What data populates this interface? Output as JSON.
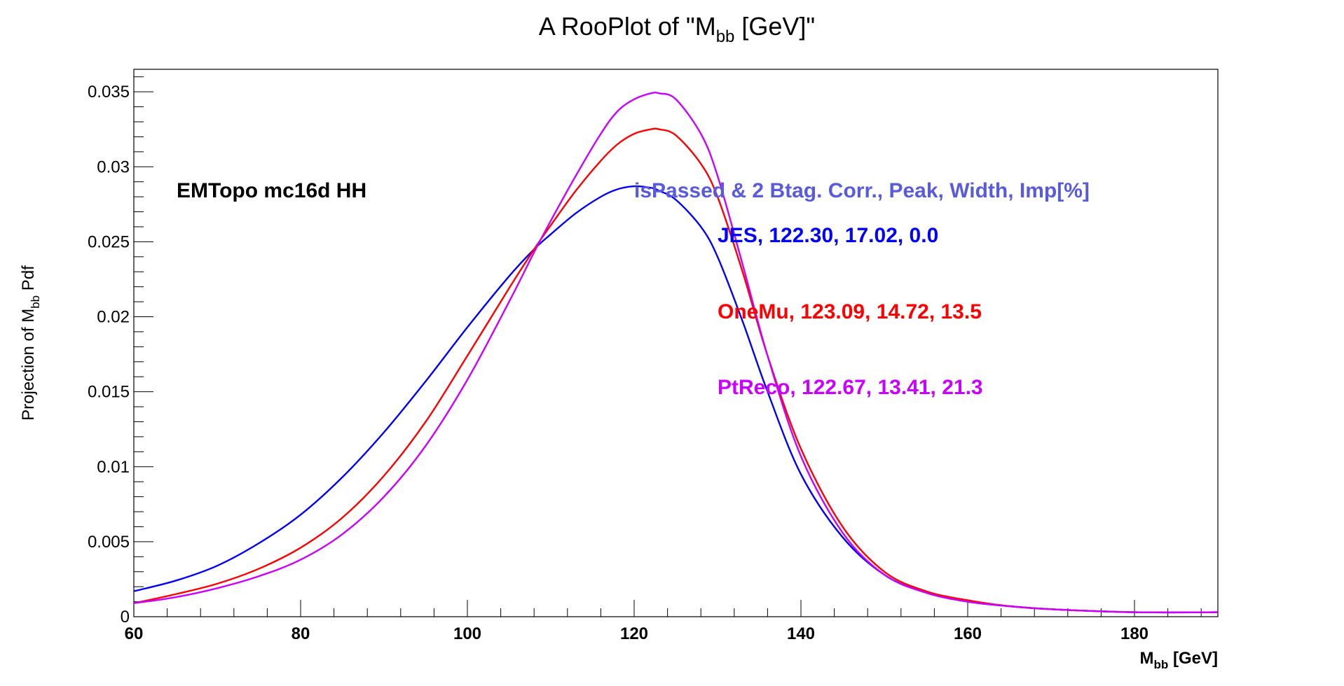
{
  "chart_data": {
    "type": "line",
    "title": {
      "prefix": "A RooPlot of \"M",
      "sub": "bb",
      "suffix": " [GeV]\""
    },
    "xlabel": {
      "main": "M",
      "sub": "bb",
      "suffix": " [GeV]"
    },
    "ylabel": {
      "main": "Projection of M",
      "sub": "bb",
      "suffix": " Pdf"
    },
    "xlim": [
      60,
      190
    ],
    "ylim": [
      0,
      0.0365
    ],
    "xticks": [
      60,
      80,
      100,
      120,
      140,
      160,
      180
    ],
    "xtick_labels": [
      "60",
      "80",
      "100",
      "120",
      "140",
      "160",
      "180"
    ],
    "yticks": [
      0,
      0.005,
      0.01,
      0.015,
      0.02,
      0.025,
      0.03,
      0.035
    ],
    "ytick_labels": [
      "0",
      "0.005",
      "0.01",
      "0.015",
      "0.02",
      "0.025",
      "0.03",
      "0.035"
    ],
    "x": [
      60,
      65,
      70,
      75,
      80,
      85,
      90,
      95,
      100,
      105,
      108,
      110,
      113,
      116,
      118,
      120,
      122,
      123,
      125,
      128,
      130,
      133,
      136,
      140,
      145,
      150,
      155,
      160,
      165,
      170,
      180,
      190
    ],
    "series": [
      {
        "name": "JES",
        "color": "#0000ff",
        "values": [
          0.0017,
          0.0024,
          0.0034,
          0.0049,
          0.0068,
          0.0093,
          0.0123,
          0.0157,
          0.0193,
          0.0227,
          0.0245,
          0.0255,
          0.0269,
          0.028,
          0.0285,
          0.0287,
          0.0286,
          0.0284,
          0.0278,
          0.026,
          0.024,
          0.0197,
          0.015,
          0.0095,
          0.0053,
          0.0028,
          0.0016,
          0.001,
          0.0007,
          0.0005,
          0.0003,
          0.0003
        ]
      },
      {
        "name": "OneMu",
        "color": "#ff0000",
        "values": [
          0.0009,
          0.0015,
          0.0022,
          0.0032,
          0.0046,
          0.0066,
          0.0094,
          0.013,
          0.0174,
          0.0219,
          0.0245,
          0.0261,
          0.0284,
          0.0304,
          0.0315,
          0.0322,
          0.0325,
          0.0325,
          0.0321,
          0.0302,
          0.028,
          0.023,
          0.0174,
          0.0112,
          0.006,
          0.003,
          0.0017,
          0.0011,
          0.0007,
          0.0005,
          0.0003,
          0.0003
        ]
      },
      {
        "name": "PtReco",
        "color": "#cc00ff",
        "values": [
          0.0009,
          0.0013,
          0.0019,
          0.0027,
          0.0038,
          0.0055,
          0.008,
          0.0114,
          0.0158,
          0.021,
          0.0243,
          0.0264,
          0.0294,
          0.0322,
          0.0337,
          0.0345,
          0.0349,
          0.0349,
          0.0345,
          0.0322,
          0.0294,
          0.0235,
          0.0174,
          0.0107,
          0.0056,
          0.0028,
          0.0016,
          0.001,
          0.0007,
          0.0005,
          0.0003,
          0.0003
        ]
      }
    ],
    "annotations": {
      "sample": "EMTopo mc16d HH",
      "header": "isPassed & 2 Btag. Corr., Peak, Width, Imp[%]",
      "header_color": "#5a5adc",
      "rows": [
        {
          "text": "JES, 122.30, 17.02, 0.0",
          "color": "#0000ff"
        },
        {
          "text": "OneMu, 123.09, 14.72, 13.5",
          "color": "#ff0000"
        },
        {
          "text": "PtReco, 122.67, 13.41, 21.3",
          "color": "#cc00ff"
        }
      ]
    },
    "grid": false,
    "legend": "none"
  }
}
